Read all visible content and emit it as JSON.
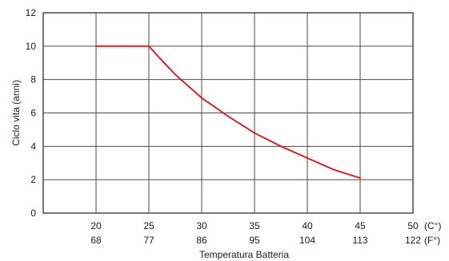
{
  "chart_data": {
    "type": "line",
    "title": "",
    "xlabel": "Temperatura Batteria",
    "ylabel": "Ciclo vita (anni)",
    "xlim": [
      15,
      50
    ],
    "ylim": [
      0,
      12
    ],
    "grid": true,
    "y_ticks": [
      "0",
      "2",
      "4",
      "6",
      "8",
      "10",
      "12"
    ],
    "x_ticks_c": [
      "20",
      "25",
      "30",
      "35",
      "40",
      "45",
      "50"
    ],
    "x_ticks_f": [
      "68",
      "77",
      "86",
      "95",
      "104",
      "113",
      "122"
    ],
    "x_unit_c": "(C°)",
    "x_unit_f": "(F°)",
    "series": [
      {
        "color": "#d2232a",
        "x": [
          20,
          25,
          26,
          27.5,
          30,
          32.5,
          35,
          37.5,
          40,
          42.5,
          45
        ],
        "y": [
          10,
          10,
          9.3,
          8.3,
          6.9,
          5.8,
          4.8,
          4.0,
          3.3,
          2.6,
          2.1
        ]
      }
    ]
  }
}
